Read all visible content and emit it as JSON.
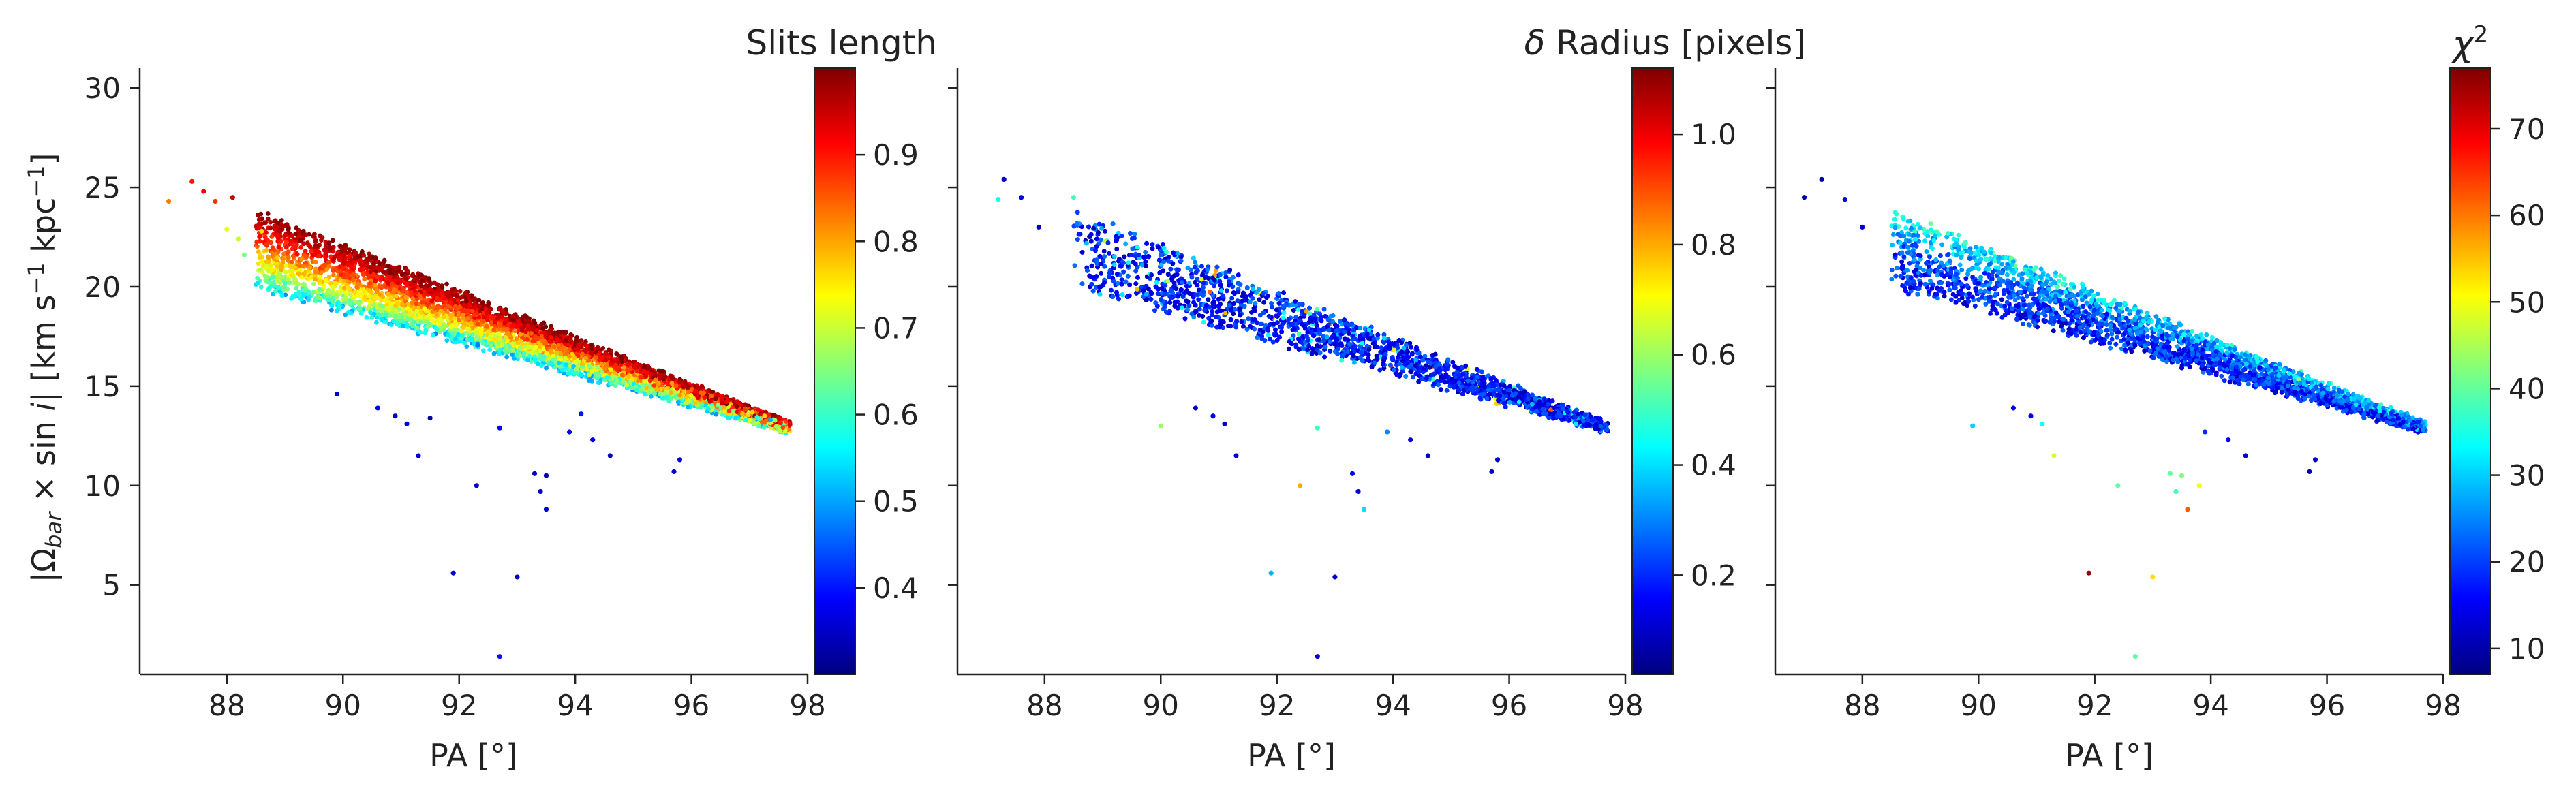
{
  "figure": {
    "colormap": "jet",
    "colormap_stops": [
      "#00007f",
      "#0000ff",
      "#007fff",
      "#00ffff",
      "#7fff7f",
      "#ffff00",
      "#ff7f00",
      "#ff0000",
      "#7f0000"
    ]
  },
  "chart_data": [
    {
      "type": "scatter",
      "title": "Slits length",
      "xlabel": "PA [°]",
      "ylabel": "|Ω_bar × sin i|   [km s⁻¹ kpc⁻¹]",
      "xlim": [
        86.5,
        98.0
      ],
      "ylim": [
        0.5,
        31.0
      ],
      "xticks": [
        88,
        90,
        92,
        94,
        96,
        98
      ],
      "yticks": [
        5,
        10,
        15,
        20,
        25,
        30
      ],
      "colorbar": {
        "label": "Slits length",
        "min": 0.3,
        "max": 1.0,
        "ticks": [
          0.4,
          0.5,
          0.6,
          0.7,
          0.8,
          0.9
        ]
      },
      "color_variable": "slits_length",
      "main_band": {
        "x_from": 88.5,
        "x_to": 97.7,
        "y_upper": [
          23.8,
          13.0
        ],
        "y_lower": [
          20.0,
          12.8
        ],
        "n_points": 5000
      },
      "outliers": [
        {
          "x": 87.0,
          "y": 24.3,
          "c": 0.83
        },
        {
          "x": 87.4,
          "y": 25.3,
          "c": 0.9
        },
        {
          "x": 87.6,
          "y": 24.8,
          "c": 0.92
        },
        {
          "x": 87.8,
          "y": 24.3,
          "c": 0.88
        },
        {
          "x": 88.1,
          "y": 24.5,
          "c": 0.95
        },
        {
          "x": 88.2,
          "y": 22.4,
          "c": 0.7
        },
        {
          "x": 88.3,
          "y": 21.6,
          "c": 0.65
        },
        {
          "x": 88.6,
          "y": 22.8,
          "c": 0.76
        },
        {
          "x": 88.0,
          "y": 22.9,
          "c": 0.72
        },
        {
          "x": 89.9,
          "y": 14.6,
          "c": 0.35
        },
        {
          "x": 90.9,
          "y": 13.5,
          "c": 0.35
        },
        {
          "x": 91.3,
          "y": 11.5,
          "c": 0.35
        },
        {
          "x": 91.5,
          "y": 13.4,
          "c": 0.33
        },
        {
          "x": 92.3,
          "y": 10.0,
          "c": 0.35
        },
        {
          "x": 91.9,
          "y": 5.6,
          "c": 0.36
        },
        {
          "x": 92.7,
          "y": 1.4,
          "c": 0.4
        },
        {
          "x": 93.0,
          "y": 5.4,
          "c": 0.34
        },
        {
          "x": 93.3,
          "y": 10.6,
          "c": 0.35
        },
        {
          "x": 93.5,
          "y": 10.5,
          "c": 0.34
        },
        {
          "x": 93.4,
          "y": 9.7,
          "c": 0.35
        },
        {
          "x": 93.5,
          "y": 8.8,
          "c": 0.35
        },
        {
          "x": 94.3,
          "y": 12.3,
          "c": 0.36
        },
        {
          "x": 94.6,
          "y": 11.5,
          "c": 0.34
        },
        {
          "x": 94.1,
          "y": 13.6,
          "c": 0.4
        },
        {
          "x": 95.7,
          "y": 10.7,
          "c": 0.35
        },
        {
          "x": 95.8,
          "y": 11.3,
          "c": 0.35
        },
        {
          "x": 92.7,
          "y": 12.9,
          "c": 0.38
        },
        {
          "x": 91.1,
          "y": 13.1,
          "c": 0.36
        },
        {
          "x": 93.9,
          "y": 12.7,
          "c": 0.37
        },
        {
          "x": 90.6,
          "y": 13.9,
          "c": 0.37
        }
      ]
    },
    {
      "type": "scatter",
      "title": "δ Radius [pixels]",
      "xlabel": "PA [°]",
      "ylabel": "",
      "xlim": [
        86.5,
        98.0
      ],
      "ylim": [
        0.5,
        31.0
      ],
      "xticks": [
        88,
        90,
        92,
        94,
        96,
        98
      ],
      "yticks": [
        5,
        10,
        15,
        20,
        25,
        30
      ],
      "colorbar": {
        "label": "δ Radius [pixels]",
        "min": 0.02,
        "max": 1.12,
        "ticks": [
          0.2,
          0.4,
          0.6,
          0.8,
          1.0
        ]
      },
      "color_variable": "delta_radius",
      "main_band": {
        "x_from": 88.5,
        "x_to": 97.7,
        "y_upper": [
          23.8,
          13.0
        ],
        "y_lower": [
          20.0,
          12.8
        ],
        "n_points": 5000
      },
      "outliers": [
        {
          "x": 87.3,
          "y": 25.4,
          "c": 0.1
        },
        {
          "x": 87.6,
          "y": 24.5,
          "c": 0.15
        },
        {
          "x": 87.2,
          "y": 24.4,
          "c": 0.45
        },
        {
          "x": 88.5,
          "y": 24.5,
          "c": 0.5
        },
        {
          "x": 87.9,
          "y": 23.0,
          "c": 0.1
        },
        {
          "x": 90.0,
          "y": 13.0,
          "c": 0.6
        },
        {
          "x": 90.9,
          "y": 13.5,
          "c": 0.15
        },
        {
          "x": 91.3,
          "y": 11.5,
          "c": 0.12
        },
        {
          "x": 92.4,
          "y": 10.0,
          "c": 0.8
        },
        {
          "x": 91.9,
          "y": 5.6,
          "c": 0.35
        },
        {
          "x": 92.7,
          "y": 1.4,
          "c": 0.1
        },
        {
          "x": 93.0,
          "y": 5.4,
          "c": 0.1
        },
        {
          "x": 93.3,
          "y": 10.6,
          "c": 0.15
        },
        {
          "x": 93.5,
          "y": 8.8,
          "c": 0.4
        },
        {
          "x": 93.4,
          "y": 9.7,
          "c": 0.12
        },
        {
          "x": 94.3,
          "y": 12.3,
          "c": 0.12
        },
        {
          "x": 94.6,
          "y": 11.5,
          "c": 0.1
        },
        {
          "x": 95.7,
          "y": 10.7,
          "c": 0.1
        },
        {
          "x": 95.8,
          "y": 11.3,
          "c": 0.1
        },
        {
          "x": 92.7,
          "y": 12.9,
          "c": 0.5
        },
        {
          "x": 91.1,
          "y": 13.1,
          "c": 0.1
        },
        {
          "x": 93.9,
          "y": 12.7,
          "c": 0.3
        },
        {
          "x": 90.6,
          "y": 13.9,
          "c": 0.1
        }
      ]
    },
    {
      "type": "scatter",
      "title": "χ²",
      "xlabel": "PA [°]",
      "ylabel": "",
      "xlim": [
        86.5,
        98.0
      ],
      "ylim": [
        0.5,
        31.0
      ],
      "xticks": [
        88,
        90,
        92,
        94,
        96,
        98
      ],
      "yticks": [
        5,
        10,
        15,
        20,
        25,
        30
      ],
      "colorbar": {
        "label": "χ²",
        "min": 7,
        "max": 77,
        "ticks": [
          10,
          20,
          30,
          40,
          50,
          60,
          70
        ]
      },
      "color_variable": "chi2",
      "main_band": {
        "x_from": 88.5,
        "x_to": 97.7,
        "y_upper": [
          23.8,
          13.0
        ],
        "y_lower": [
          20.0,
          12.8
        ],
        "n_points": 5000
      },
      "outliers": [
        {
          "x": 87.0,
          "y": 24.5,
          "c": 10
        },
        {
          "x": 87.3,
          "y": 25.4,
          "c": 10
        },
        {
          "x": 87.7,
          "y": 24.4,
          "c": 12
        },
        {
          "x": 88.0,
          "y": 23.0,
          "c": 12
        },
        {
          "x": 89.9,
          "y": 13.0,
          "c": 30
        },
        {
          "x": 90.9,
          "y": 13.5,
          "c": 15
        },
        {
          "x": 91.3,
          "y": 11.5,
          "c": 48
        },
        {
          "x": 91.9,
          "y": 5.6,
          "c": 75
        },
        {
          "x": 92.4,
          "y": 10.0,
          "c": 40
        },
        {
          "x": 92.7,
          "y": 1.4,
          "c": 40
        },
        {
          "x": 93.0,
          "y": 5.4,
          "c": 53
        },
        {
          "x": 93.3,
          "y": 10.6,
          "c": 40
        },
        {
          "x": 93.5,
          "y": 10.5,
          "c": 42
        },
        {
          "x": 93.4,
          "y": 9.7,
          "c": 38
        },
        {
          "x": 93.6,
          "y": 8.8,
          "c": 62
        },
        {
          "x": 93.8,
          "y": 10.0,
          "c": 50
        },
        {
          "x": 94.3,
          "y": 12.3,
          "c": 15
        },
        {
          "x": 94.6,
          "y": 11.5,
          "c": 12
        },
        {
          "x": 95.7,
          "y": 10.7,
          "c": 10
        },
        {
          "x": 95.8,
          "y": 11.3,
          "c": 12
        },
        {
          "x": 91.1,
          "y": 13.1,
          "c": 35
        },
        {
          "x": 90.6,
          "y": 13.9,
          "c": 15
        },
        {
          "x": 93.9,
          "y": 12.7,
          "c": 18
        }
      ]
    }
  ]
}
